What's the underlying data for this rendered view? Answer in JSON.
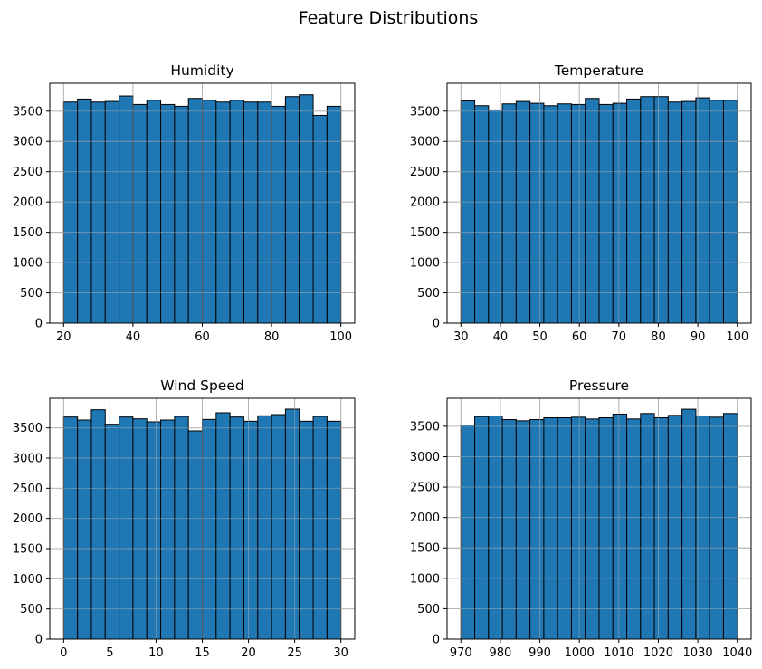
{
  "colors": {
    "bar_fill": "#1f77b4",
    "bar_edge": "#000000",
    "grid": "#b0b0b0"
  },
  "chart_data": {
    "title": "Feature Distributions",
    "grid": true,
    "charts": [
      {
        "type": "bar",
        "title": "Humidity",
        "xlim": [
          20,
          100
        ],
        "ylim": [
          0,
          3960
        ],
        "xticks": [
          20,
          40,
          60,
          80,
          100
        ],
        "yticks": [
          0,
          500,
          1000,
          1500,
          2000,
          2500,
          3000,
          3500
        ],
        "bin_width": 4,
        "x": [
          20,
          24,
          28,
          32,
          36,
          40,
          44,
          48,
          52,
          56,
          60,
          64,
          68,
          72,
          76,
          80,
          84,
          88,
          92,
          96
        ],
        "values": [
          3650,
          3700,
          3650,
          3660,
          3750,
          3610,
          3680,
          3610,
          3580,
          3710,
          3680,
          3650,
          3680,
          3650,
          3650,
          3580,
          3740,
          3770,
          3430,
          3580
        ]
      },
      {
        "type": "bar",
        "title": "Temperature",
        "xlim": [
          30,
          100
        ],
        "ylim": [
          0,
          3960
        ],
        "xticks": [
          30,
          40,
          50,
          60,
          70,
          80,
          90,
          100
        ],
        "yticks": [
          0,
          500,
          1000,
          1500,
          2000,
          2500,
          3000,
          3500
        ],
        "bin_width": 3.5,
        "x": [
          30,
          33.5,
          37,
          40.5,
          44,
          47.5,
          51,
          54.5,
          58,
          61.5,
          65,
          68.5,
          72,
          75.5,
          79,
          82.5,
          86,
          89.5,
          93,
          96.5
        ],
        "values": [
          3670,
          3590,
          3520,
          3620,
          3660,
          3630,
          3590,
          3620,
          3610,
          3710,
          3610,
          3630,
          3700,
          3740,
          3740,
          3650,
          3660,
          3720,
          3680,
          3680
        ]
      },
      {
        "type": "bar",
        "title": "Wind Speed",
        "xlim": [
          0,
          30
        ],
        "ylim": [
          0,
          3990
        ],
        "xticks": [
          0,
          5,
          10,
          15,
          20,
          25,
          30
        ],
        "yticks": [
          0,
          500,
          1000,
          1500,
          2000,
          2500,
          3000,
          3500
        ],
        "bin_width": 1.5,
        "x": [
          0,
          1.5,
          3,
          4.5,
          6,
          7.5,
          9,
          10.5,
          12,
          13.5,
          15,
          16.5,
          18,
          19.5,
          21,
          22.5,
          24,
          25.5,
          27,
          28.5
        ],
        "values": [
          3680,
          3630,
          3800,
          3560,
          3680,
          3650,
          3600,
          3630,
          3690,
          3450,
          3640,
          3750,
          3680,
          3610,
          3700,
          3720,
          3810,
          3610,
          3690,
          3610
        ]
      },
      {
        "type": "bar",
        "title": "Pressure",
        "xlim": [
          970,
          1040
        ],
        "ylim": [
          0,
          3960
        ],
        "xticks": [
          970,
          980,
          990,
          1000,
          1010,
          1020,
          1030,
          1040
        ],
        "yticks": [
          0,
          500,
          1000,
          1500,
          2000,
          2500,
          3000,
          3500
        ],
        "bin_width": 3.5,
        "x": [
          970,
          973.5,
          977,
          980.5,
          984,
          987.5,
          991,
          994.5,
          998,
          1001.5,
          1005,
          1008.5,
          1012,
          1015.5,
          1019,
          1022.5,
          1026,
          1029.5,
          1033,
          1036.5
        ],
        "values": [
          3520,
          3660,
          3670,
          3610,
          3590,
          3610,
          3640,
          3640,
          3650,
          3620,
          3640,
          3700,
          3620,
          3710,
          3640,
          3680,
          3780,
          3670,
          3650,
          3710
        ]
      }
    ]
  }
}
